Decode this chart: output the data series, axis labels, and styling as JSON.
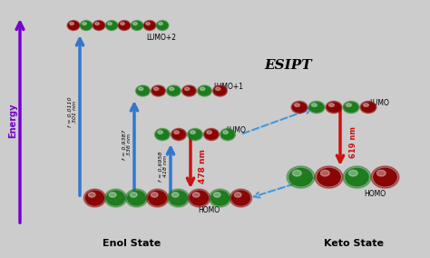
{
  "bg_color": "#cccccc",
  "enol_label": "Enol State",
  "keto_label": "Keto State",
  "esipt_label": "ESIPT",
  "energy_label": "Energy",
  "homo_label": "HOMO",
  "lumo_label": "LUMO",
  "lumo1_label": "LUMO+1",
  "lumo2_label": "LUMO+2",
  "arrow_478": "478 nm",
  "arrow_619": "619 nm",
  "text_f1": "f = 0.0110\n301 nm",
  "text_f2": "f = 0.9387\n336 nm",
  "text_f3": "f = 0.6958\n418 nm",
  "blue_arrow_color": "#3377cc",
  "red_arrow_color": "#cc1111",
  "purple_arrow_color": "#7700cc",
  "dashed_arrow_color": "#4499dd",
  "mol_green": "#1a7a1a",
  "mol_red": "#880000",
  "mol_green2": "#2d9e2d",
  "mol_red2": "#aa1111"
}
